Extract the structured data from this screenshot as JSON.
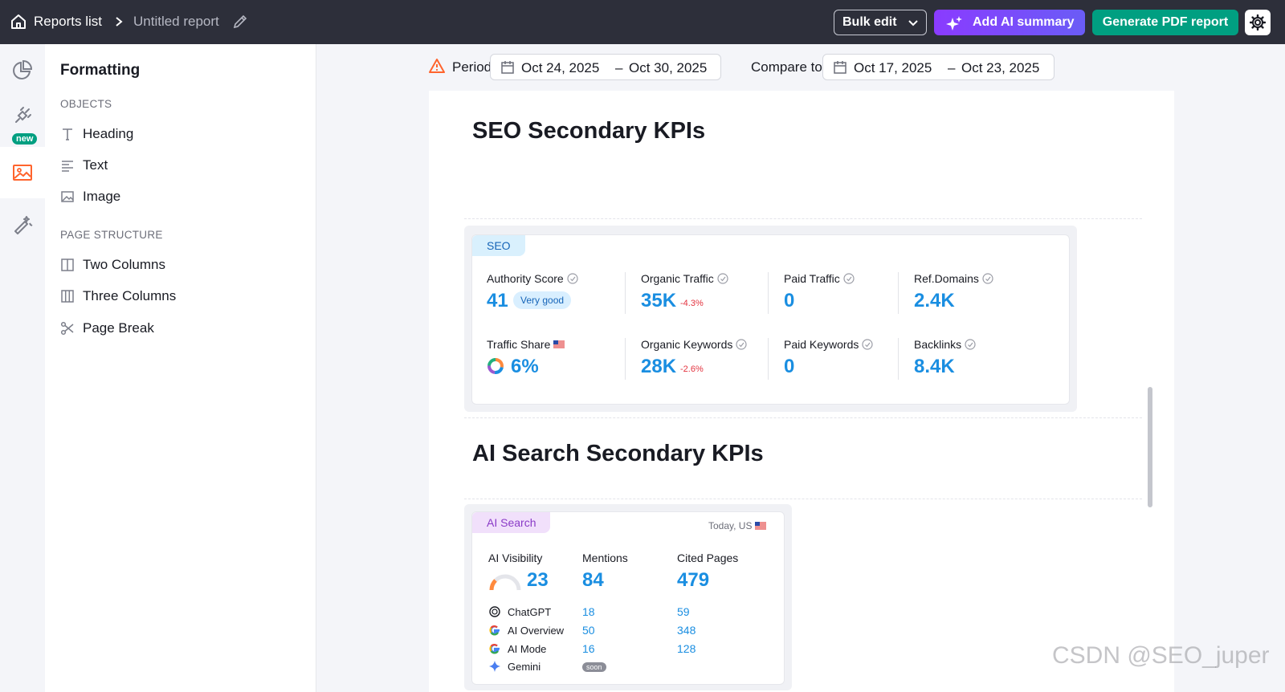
{
  "header": {
    "crumb_reports": "Reports list",
    "crumb_current": "Untitled report",
    "bulk_edit": "Bulk edit",
    "add_ai_summary": "Add AI summary",
    "generate_pdf": "Generate PDF report"
  },
  "rail": {
    "new_badge": "new"
  },
  "panel": {
    "title": "Formatting",
    "objects_label": "OBJECTS",
    "objects": [
      "Heading",
      "Text",
      "Image"
    ],
    "structure_label": "PAGE STRUCTURE",
    "structure": [
      "Two Columns",
      "Three Columns",
      "Page Break"
    ]
  },
  "period": {
    "label": "Period",
    "start": "Oct 24, 2025",
    "end": "Oct 30, 2025",
    "compare_label": "Compare to",
    "compare_start": "Oct 17, 2025",
    "compare_end": "Oct 23, 2025",
    "dash": "–"
  },
  "seo_section": {
    "heading": "SEO Secondary KPIs",
    "tag": "SEO",
    "kpis": [
      {
        "label": "Authority Score",
        "value": "41",
        "badge": "Very good"
      },
      {
        "label": "Organic Traffic",
        "value": "35K",
        "delta": "-4.3%"
      },
      {
        "label": "Paid Traffic",
        "value": "0"
      },
      {
        "label": "Ref.Domains",
        "value": "2.4K"
      },
      {
        "label": "Traffic Share",
        "value": "6%"
      },
      {
        "label": "Organic Keywords",
        "value": "28K",
        "delta": "-2.6%"
      },
      {
        "label": "Paid Keywords",
        "value": "0"
      },
      {
        "label": "Backlinks",
        "value": "8.4K"
      }
    ]
  },
  "ai_section": {
    "heading": "AI Search Secondary KPIs",
    "tag": "AI Search",
    "meta": "Today, US",
    "cols": [
      "AI Visibility",
      "Mentions",
      "Cited Pages"
    ],
    "totals": [
      "23",
      "84",
      "479"
    ],
    "rows": [
      {
        "name": "ChatGPT",
        "mentions": "18",
        "cited": "59"
      },
      {
        "name": "AI Overview",
        "mentions": "50",
        "cited": "348"
      },
      {
        "name": "AI Mode",
        "mentions": "16",
        "cited": "128"
      },
      {
        "name": "Gemini",
        "mentions": "soon",
        "cited": ""
      }
    ]
  },
  "watermark": "CSDN @SEO_juper",
  "colors": {
    "topbar": "#2d2f3a",
    "accent_blue": "#1a8ee1",
    "pdf_green": "#009f81",
    "ai_purple": "#8a3bff",
    "negative": "#e3333f"
  }
}
